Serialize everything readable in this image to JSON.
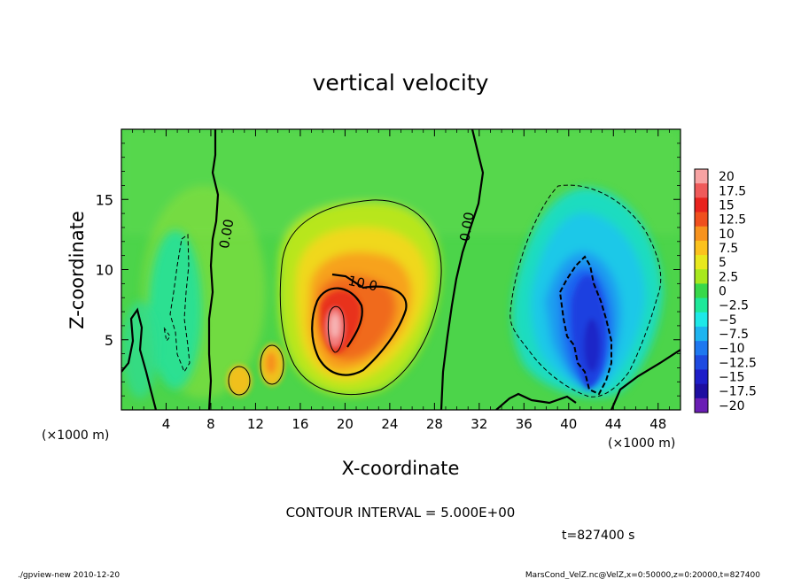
{
  "chart_data": {
    "type": "heatmap",
    "title": "vertical velocity",
    "xlabel": "X-coordinate",
    "ylabel": "Z-coordinate",
    "x_unit_left": "(×1000 m)",
    "x_unit_right": "(×1000 m)",
    "xlim": [
      0,
      50
    ],
    "ylim": [
      0,
      20
    ],
    "x_ticks": [
      4,
      8,
      12,
      16,
      20,
      24,
      28,
      32,
      36,
      40,
      44,
      48
    ],
    "y_ticks": [
      5,
      10,
      15
    ],
    "colorbar": {
      "labels": [
        "20",
        "17.5",
        "15",
        "12.5",
        "10",
        "7.5",
        "5",
        "2.5",
        "0",
        "−2.5",
        "−5",
        "−7.5",
        "−10",
        "−12.5",
        "−15",
        "−17.5",
        "−20"
      ],
      "colors": [
        "#f7a3a3",
        "#ef5a5a",
        "#e8231e",
        "#f0501e",
        "#f7931e",
        "#fbc21e",
        "#e8e81e",
        "#a8e81e",
        "#38d84a",
        "#1ee89a",
        "#1ee8e8",
        "#1eb4f0",
        "#1e78f0",
        "#1e4ae0",
        "#1e1ec8",
        "#1e0ea0",
        "#6a1eb4"
      ]
    },
    "contour_labels": [
      {
        "text": "0.00",
        "x": 9.8,
        "z": 12.5
      },
      {
        "text": "10.0",
        "x": 21.5,
        "z": 8.7
      },
      {
        "text": "0.00",
        "x": 31.3,
        "z": 13.0
      }
    ],
    "features": [
      {
        "kind": "updraft",
        "x": 20.0,
        "z": 6.5,
        "peak": 18
      },
      {
        "kind": "downdraft",
        "x": 41.5,
        "z": 6.0,
        "peak": -12
      },
      {
        "kind": "weak-downdraft",
        "x": 5.2,
        "z": 7.0,
        "peak": -5
      }
    ],
    "contour_interval_text": "CONTOUR INTERVAL = 5.000E+00",
    "time_text": "t=827400 s"
  },
  "footer": {
    "left": "./gpview-new  2010-12-20",
    "right": "MarsCond_VelZ.nc@VelZ,x=0:50000,z=0:20000,t=827400"
  }
}
